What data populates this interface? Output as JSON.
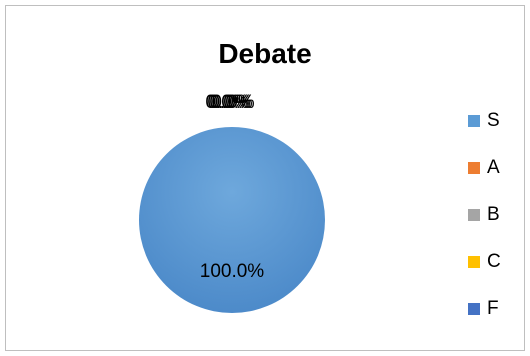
{
  "chart_data": {
    "type": "pie",
    "title": "Debate",
    "legend_position": "right",
    "categories": [
      "S",
      "A",
      "B",
      "C",
      "F"
    ],
    "values": [
      100.0,
      0.0,
      0.0,
      0.0,
      0.0
    ],
    "data_labels": [
      "100.0%",
      "0.0%",
      "0.0%",
      "0.0%",
      "0.0%"
    ],
    "colors": [
      "#5b9bd5",
      "#ed7d31",
      "#a5a5a5",
      "#ffc000",
      "#4472c4"
    ]
  }
}
